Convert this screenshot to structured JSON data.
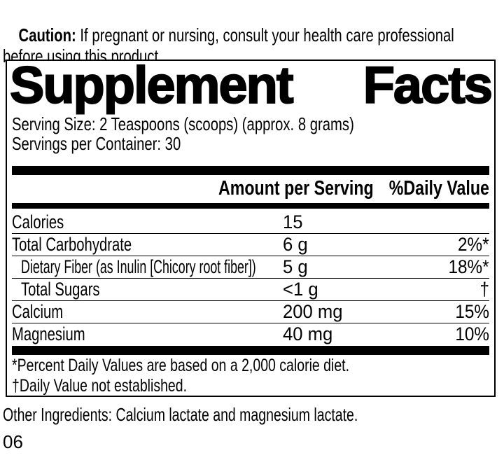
{
  "caution": {
    "label": "Caution:",
    "text": " If pregnant or nursing, consult your health care professional\nbefore using this product."
  },
  "panel": {
    "title_word1": "Supplement",
    "title_word2": "Facts",
    "serving_size": "Serving Size: 2 Teaspoons (scoops) (approx. 8 grams)",
    "servings_per_container": "Servings per Container: 30",
    "header": {
      "amount": "Amount per Serving",
      "daily_value": "%Daily Value"
    },
    "rows": [
      {
        "name": "Calories",
        "amount": "15",
        "dv": ""
      },
      {
        "name": "Total Carbohydrate",
        "amount": "6 g",
        "dv": "2%*"
      },
      {
        "name": "Dietary Fiber (as Inulin [Chicory root fiber])",
        "amount": "5 g",
        "dv": "18%*"
      },
      {
        "name": "Total Sugars",
        "amount": "<1 g",
        "dv": "†"
      },
      {
        "name": "Calcium",
        "amount": "200 mg",
        "dv": "15%"
      },
      {
        "name": "Magnesium",
        "amount": "40 mg",
        "dv": "10%"
      }
    ],
    "footnotes": [
      "*Percent Daily Values are based on a 2,000 calorie diet.",
      "†Daily Value not established."
    ]
  },
  "other_ingredients": "Other Ingredients: Calcium lactate and magnesium lactate.",
  "bottom_code": "06",
  "colors": {
    "text": "#000000",
    "background": "#ffffff"
  }
}
